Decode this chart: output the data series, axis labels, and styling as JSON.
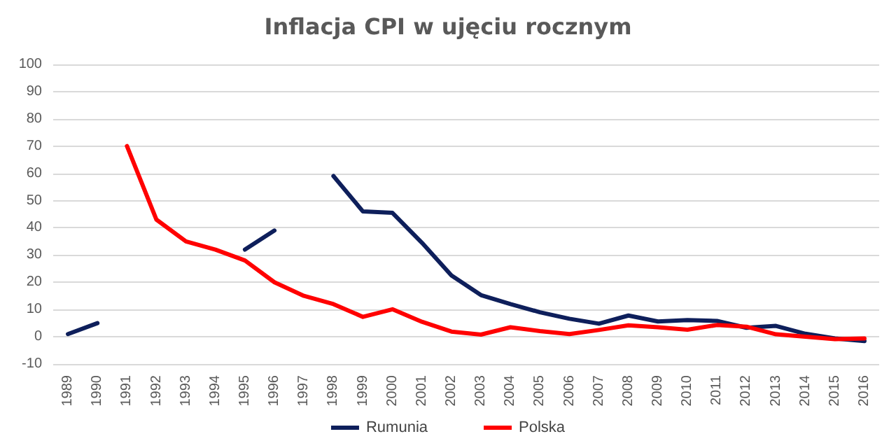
{
  "chart_data": {
    "type": "line",
    "title": "Inflacja CPI w ujęciu rocznym",
    "categories": [
      "1989",
      "1990",
      "1991",
      "1992",
      "1993",
      "1994",
      "1995",
      "1996",
      "1997",
      "1998",
      "1999",
      "2000",
      "2001",
      "2002",
      "2003",
      "2004",
      "2005",
      "2006",
      "2007",
      "2008",
      "2009",
      "2010",
      "2011",
      "2012",
      "2013",
      "2014",
      "2015",
      "2016"
    ],
    "series": [
      {
        "name": "Rumunia",
        "color": "#0e1f5b",
        "values": [
          1,
          5,
          null,
          null,
          null,
          null,
          32,
          39,
          null,
          59,
          46,
          45.5,
          34.5,
          22.5,
          15.3,
          12,
          9,
          6.6,
          4.8,
          7.8,
          5.6,
          6.1,
          5.8,
          3.3,
          4,
          1.1,
          -0.6,
          -1.6
        ]
      },
      {
        "name": "Polska",
        "color": "#ff0000",
        "values": [
          null,
          null,
          70,
          43,
          35,
          32,
          28,
          20,
          15,
          12,
          7.3,
          10.1,
          5.5,
          1.9,
          0.8,
          3.5,
          2.1,
          1,
          2.5,
          4.2,
          3.5,
          2.6,
          4.3,
          3.7,
          0.9,
          0,
          -0.9,
          -0.6
        ]
      }
    ],
    "ylim": [
      -10,
      100
    ],
    "yticks": [
      -10,
      0,
      10,
      20,
      30,
      40,
      50,
      60,
      70,
      80,
      90,
      100
    ],
    "grid": "y",
    "legend": "bottom",
    "marker": "none",
    "line_style": "solid"
  }
}
